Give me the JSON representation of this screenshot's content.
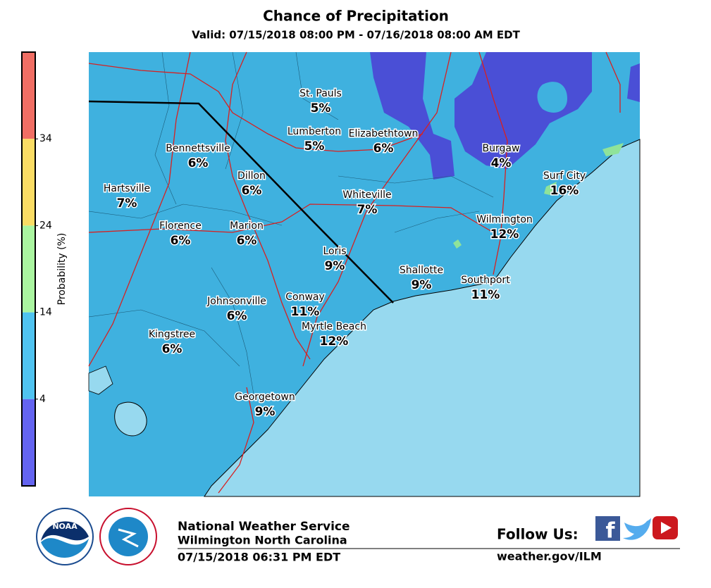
{
  "title": "Chance of Precipitation",
  "subtitle": "Valid: 07/15/2018 08:00 PM - 07/16/2018 08:00 AM EDT",
  "colorbar": {
    "label": "Probability (%)",
    "lim": [
      -6,
      44
    ],
    "ticks": [
      4,
      14,
      24,
      34
    ],
    "colors": [
      "#6464f0",
      "#50c3f0",
      "#aaf5a0",
      "#fadc64",
      "#f06e64"
    ]
  },
  "cities": [
    {
      "name": "St. Pauls",
      "value": 5,
      "value_label": "5%"
    },
    {
      "name": "Lumberton",
      "value": 5,
      "value_label": "5%"
    },
    {
      "name": "Elizabethtown",
      "value": 6,
      "value_label": "6%"
    },
    {
      "name": "Bennettsville",
      "value": 6,
      "value_label": "6%"
    },
    {
      "name": "Burgaw",
      "value": 4,
      "value_label": "4%"
    },
    {
      "name": "Dillon",
      "value": 6,
      "value_label": "6%"
    },
    {
      "name": "Surf City",
      "value": 16,
      "value_label": "16%"
    },
    {
      "name": "Hartsville",
      "value": 7,
      "value_label": "7%"
    },
    {
      "name": "Whiteville",
      "value": 7,
      "value_label": "7%"
    },
    {
      "name": "Wilmington",
      "value": 12,
      "value_label": "12%"
    },
    {
      "name": "Florence",
      "value": 6,
      "value_label": "6%"
    },
    {
      "name": "Marion",
      "value": 6,
      "value_label": "6%"
    },
    {
      "name": "Loris",
      "value": 9,
      "value_label": "9%"
    },
    {
      "name": "Shallotte",
      "value": 9,
      "value_label": "9%"
    },
    {
      "name": "Southport",
      "value": 11,
      "value_label": "11%"
    },
    {
      "name": "Conway",
      "value": 11,
      "value_label": "11%"
    },
    {
      "name": "Johnsonville",
      "value": 6,
      "value_label": "6%"
    },
    {
      "name": "Myrtle Beach",
      "value": 12,
      "value_label": "12%"
    },
    {
      "name": "Kingstree",
      "value": 6,
      "value_label": "6%"
    },
    {
      "name": "Georgetown",
      "value": 9,
      "value_label": "9%"
    }
  ],
  "footer": {
    "logo_text": "NOAA",
    "office": "National Weather Service",
    "location": "Wilmington North Carolina",
    "issued": "07/15/2018 06:31 PM EDT",
    "follow": "Follow Us:",
    "url": "weather.gov/ILM"
  }
}
